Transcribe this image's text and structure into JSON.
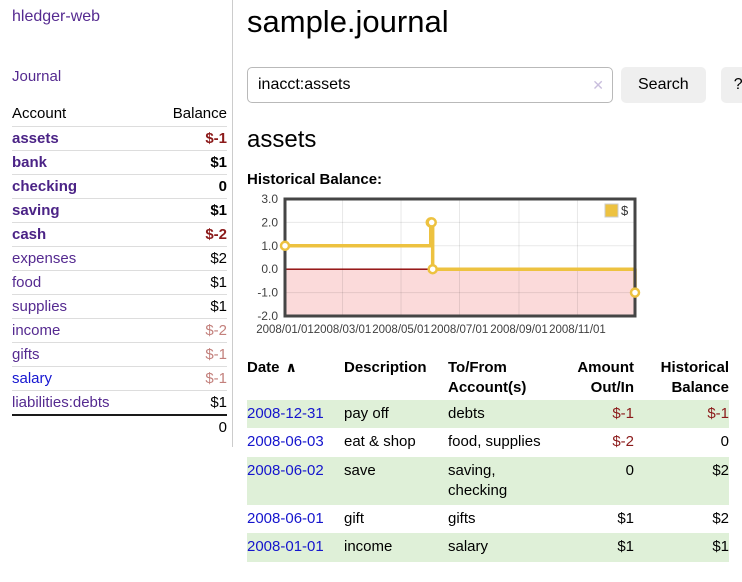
{
  "app": {
    "brand": "hledger-web",
    "journal_link": "Journal"
  },
  "sidebar": {
    "header": {
      "account": "Account",
      "balance": "Balance"
    },
    "accounts": [
      {
        "name": "assets",
        "depth": 1,
        "infilter": true,
        "balance": "$-1"
      },
      {
        "name": "bank",
        "depth": 2,
        "infilter": true,
        "balance": "$1"
      },
      {
        "name": "checking",
        "depth": 3,
        "infilter": true,
        "balance": "0"
      },
      {
        "name": "saving",
        "depth": 3,
        "infilter": true,
        "balance": "$1"
      },
      {
        "name": "cash",
        "depth": 2,
        "infilter": true,
        "balance": "$-2"
      },
      {
        "name": "expenses",
        "depth": 1,
        "infilter": false,
        "balance": "$2"
      },
      {
        "name": "food",
        "depth": 2,
        "infilter": false,
        "balance": "$1"
      },
      {
        "name": "supplies",
        "depth": 2,
        "infilter": false,
        "balance": "$1"
      },
      {
        "name": "income",
        "depth": 1,
        "infilter": false,
        "balance": "$-2",
        "muted": true
      },
      {
        "name": "gifts",
        "depth": 2,
        "infilter": false,
        "balance": "$-1",
        "muted": true
      },
      {
        "name": "salary",
        "depth": 2,
        "infilter": false,
        "balance": "$-1",
        "muted": true,
        "unvisited": true
      },
      {
        "name": "liabilities:debts",
        "depth": 1,
        "infilter": false,
        "balance": "$1"
      }
    ],
    "total": "0"
  },
  "main": {
    "title": "sample.journal",
    "search": {
      "value": "inacct:assets",
      "clear": "✕",
      "button": "Search",
      "help": "?"
    },
    "account_heading": "assets",
    "chart_heading": "Historical Balance:"
  },
  "chart_data": {
    "type": "line",
    "step": true,
    "title": "Historical Balance:",
    "legend_label": "$",
    "points": [
      {
        "date": "2008-01-01",
        "day": 0,
        "value": 1
      },
      {
        "date": "2008-06-01",
        "day": 152,
        "value": 2
      },
      {
        "date": "2008-06-02",
        "day": 153,
        "value": 2
      },
      {
        "date": "2008-06-03",
        "day": 154,
        "value": 0
      },
      {
        "date": "2008-12-31",
        "day": 365,
        "value": -1
      }
    ],
    "xlim": [
      0,
      365
    ],
    "ylim": [
      -2,
      3
    ],
    "x_ticks": [
      {
        "label": "2008/01/01",
        "day": 0
      },
      {
        "label": "2008/03/01",
        "day": 60
      },
      {
        "label": "2008/05/01",
        "day": 121
      },
      {
        "label": "2008/07/01",
        "day": 182
      },
      {
        "label": "2008/09/01",
        "day": 244
      },
      {
        "label": "2008/11/01",
        "day": 305
      }
    ],
    "y_ticks": [
      "3.0",
      "2.0",
      "1.0",
      "0.0",
      "-1.0",
      "-2.0"
    ],
    "colors": {
      "line": "#edc240",
      "marker_fill": "#ffffff",
      "grid": "rgba(0,0,0,0.09)",
      "border": "#454545",
      "negative_region": "#fbdada",
      "zero_line": "#8b0000",
      "tick_text": "#3f3f3f",
      "legend_box_border": "#cccccc"
    }
  },
  "register": {
    "columns": [
      {
        "label": "Date",
        "align": "left",
        "sort_icon": "∧"
      },
      {
        "label": "Description",
        "align": "left"
      },
      {
        "label": "To/From Account(s)",
        "align": "left"
      },
      {
        "label": "Amount Out/In",
        "align": "right"
      },
      {
        "label": "Historical Balance",
        "align": "right"
      }
    ],
    "rows": [
      {
        "date": "2008-12-31",
        "description": "pay off",
        "accounts": "debts",
        "amount": "$-1",
        "balance": "$-1"
      },
      {
        "date": "2008-06-03",
        "description": "eat & shop",
        "accounts": "food, supplies",
        "amount": "$-2",
        "balance": "0"
      },
      {
        "date": "2008-06-02",
        "description": "save",
        "accounts": "saving, checking",
        "amount": "0",
        "balance": "$2"
      },
      {
        "date": "2008-06-01",
        "description": "gift",
        "accounts": "gifts",
        "amount": "$1",
        "balance": "$2"
      },
      {
        "date": "2008-01-01",
        "description": "income",
        "accounts": "salary",
        "amount": "$1",
        "balance": "$1"
      }
    ]
  }
}
